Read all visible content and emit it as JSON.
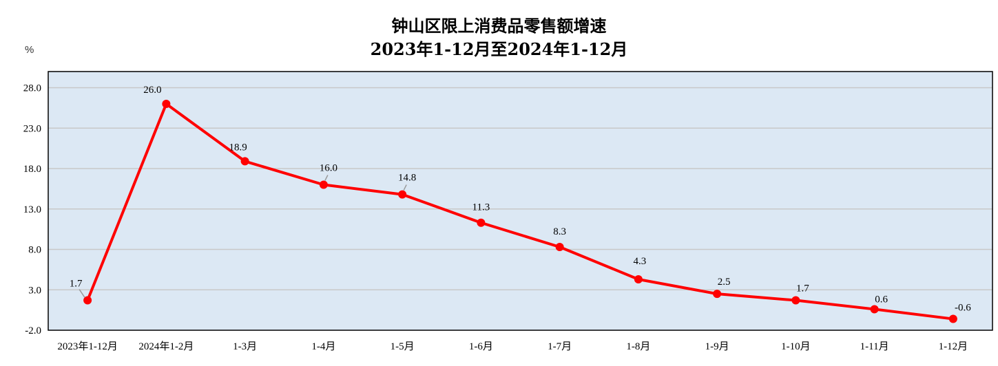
{
  "chart_data": {
    "type": "line",
    "title": "钟山区限上消费品零售额增速",
    "subtitle": "2023年1-12月至2024年1-12月",
    "ylabel": "%",
    "xlabel": "",
    "categories": [
      "2023年1-12月",
      "2024年1-2月",
      "1-3月",
      "1-4月",
      "1-5月",
      "1-6月",
      "1-7月",
      "1-8月",
      "1-9月",
      "1-10月",
      "1-11月",
      "1-12月"
    ],
    "series": [
      {
        "values": [
          1.7,
          26.0,
          18.9,
          16.0,
          14.8,
          11.3,
          8.3,
          4.3,
          2.5,
          1.7,
          0.6,
          -0.6
        ],
        "labels": [
          "1.7",
          "26.0",
          "18.9",
          "16.0",
          "14.8",
          "11.3",
          "8.3",
          "4.3",
          "2.5",
          "1.7",
          "0.6",
          "-0.6"
        ],
        "color": "#ff0000"
      }
    ],
    "ylim": [
      -2.0,
      30.0
    ],
    "yticks": [
      -2.0,
      3.0,
      8.0,
      13.0,
      18.0,
      23.0,
      28.0
    ],
    "ytick_labels": [
      "-2.0",
      "3.0",
      "8.0",
      "13.0",
      "18.0",
      "23.0",
      "28.0"
    ],
    "grid": true,
    "legend": "none",
    "colors": {
      "plot_background": "#dce8f4",
      "gridline": "#c8c8c8",
      "line": "#ff0000"
    }
  }
}
